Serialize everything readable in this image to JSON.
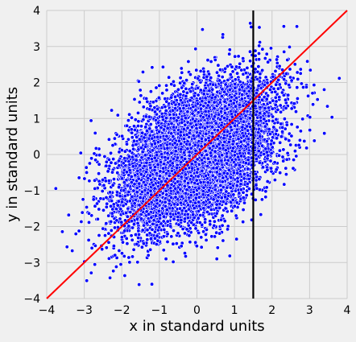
{
  "chart_data": {
    "type": "scatter",
    "title": "",
    "xlabel": "x in standard units",
    "ylabel": "y in standard units",
    "xlim": [
      -4,
      4
    ],
    "ylim": [
      -4,
      4
    ],
    "xticks": [
      -4,
      -3,
      -2,
      -1,
      0,
      1,
      2,
      3,
      4
    ],
    "yticks": [
      -4,
      -3,
      -2,
      -1,
      0,
      1,
      2,
      3,
      4
    ],
    "grid": true,
    "series": [
      {
        "name": "",
        "kind": "points",
        "color": "#0000ff",
        "edge_color": "#ffffff",
        "approx_count": 10000,
        "correlation": 0.5,
        "x_mean": 0,
        "x_sd": 1,
        "y_mean": 0,
        "y_sd": 1
      }
    ],
    "lines": [
      {
        "name": "",
        "kind": "diagonal",
        "color": "#ff0000",
        "points": [
          [
            -4,
            -4
          ],
          [
            4,
            4
          ]
        ]
      },
      {
        "name": "",
        "kind": "vertical",
        "color": "#000000",
        "x": 1.5,
        "y_range": [
          -4,
          4
        ]
      }
    ]
  },
  "colors": {
    "background": "#f0f0f0",
    "grid": "#cbcbcb",
    "points": "#0000ff",
    "diagonal_line": "#ff0000",
    "vertical_line": "#000000"
  }
}
